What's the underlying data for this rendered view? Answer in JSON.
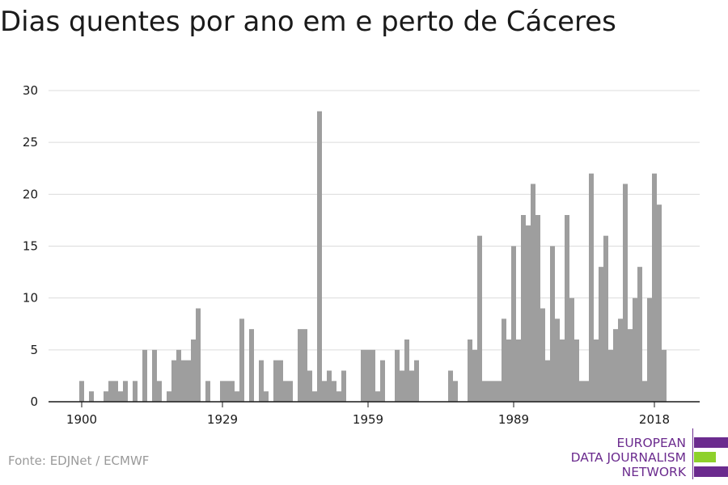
{
  "title": "Dias quentes por ano em e perto de Cáceres",
  "source": "Fonte: EDJNet / ECMWF",
  "logo": {
    "lines": [
      "EUROPEAN",
      "DATA JOURNALISM",
      "NETWORK"
    ],
    "colors": {
      "purple": "#6b2b8e",
      "green": "#8ed12b"
    }
  },
  "chart_data": {
    "type": "bar",
    "title": "Dias quentes por ano em e perto de Cáceres",
    "xlabel": "",
    "ylabel": "",
    "ylim": [
      0,
      30
    ],
    "yticks": [
      0,
      5,
      10,
      15,
      20,
      25,
      30
    ],
    "xticks": [
      1900,
      1929,
      1959,
      1989,
      2018
    ],
    "grid": true,
    "bar_color": "#9e9e9e",
    "x": [
      1900,
      1901,
      1902,
      1903,
      1904,
      1905,
      1906,
      1907,
      1908,
      1909,
      1910,
      1911,
      1912,
      1913,
      1914,
      1915,
      1916,
      1917,
      1918,
      1919,
      1920,
      1921,
      1922,
      1923,
      1924,
      1925,
      1926,
      1927,
      1928,
      1929,
      1930,
      1931,
      1932,
      1933,
      1934,
      1935,
      1936,
      1937,
      1938,
      1939,
      1940,
      1941,
      1942,
      1943,
      1944,
      1945,
      1946,
      1947,
      1948,
      1949,
      1950,
      1951,
      1952,
      1953,
      1954,
      1955,
      1956,
      1957,
      1958,
      1959,
      1960,
      1961,
      1962,
      1963,
      1964,
      1965,
      1966,
      1967,
      1968,
      1969,
      1970,
      1971,
      1972,
      1973,
      1974,
      1975,
      1976,
      1977,
      1978,
      1979,
      1980,
      1981,
      1982,
      1983,
      1984,
      1985,
      1986,
      1987,
      1988,
      1989,
      1990,
      1991,
      1992,
      1993,
      1994,
      1995,
      1996,
      1997,
      1998,
      1999,
      2000,
      2001,
      2002,
      2003,
      2004,
      2005,
      2006,
      2007,
      2008,
      2009,
      2010,
      2011,
      2012,
      2013,
      2014,
      2015,
      2016,
      2017,
      2018,
      2019,
      2020
    ],
    "values": [
      2,
      0,
      1,
      0,
      0,
      1,
      2,
      2,
      1,
      2,
      0,
      2,
      0,
      5,
      0,
      5,
      2,
      0,
      1,
      4,
      5,
      4,
      4,
      6,
      9,
      0,
      2,
      0,
      0,
      2,
      2,
      2,
      1,
      8,
      0,
      7,
      0,
      4,
      1,
      0,
      4,
      4,
      2,
      2,
      0,
      7,
      7,
      3,
      1,
      28,
      2,
      3,
      2,
      1,
      3,
      0,
      0,
      0,
      5,
      5,
      5,
      1,
      4,
      0,
      0,
      5,
      3,
      6,
      3,
      4,
      0,
      0,
      0,
      0,
      0,
      0,
      3,
      2,
      0,
      0,
      6,
      5,
      16,
      2,
      2,
      2,
      2,
      8,
      6,
      15,
      6,
      18,
      17,
      21,
      18,
      9,
      4,
      15,
      8,
      6,
      18,
      10,
      6,
      2,
      2,
      22,
      6,
      13,
      16,
      5,
      7,
      8,
      21,
      7,
      10,
      13,
      2,
      10,
      22,
      19,
      5
    ]
  }
}
